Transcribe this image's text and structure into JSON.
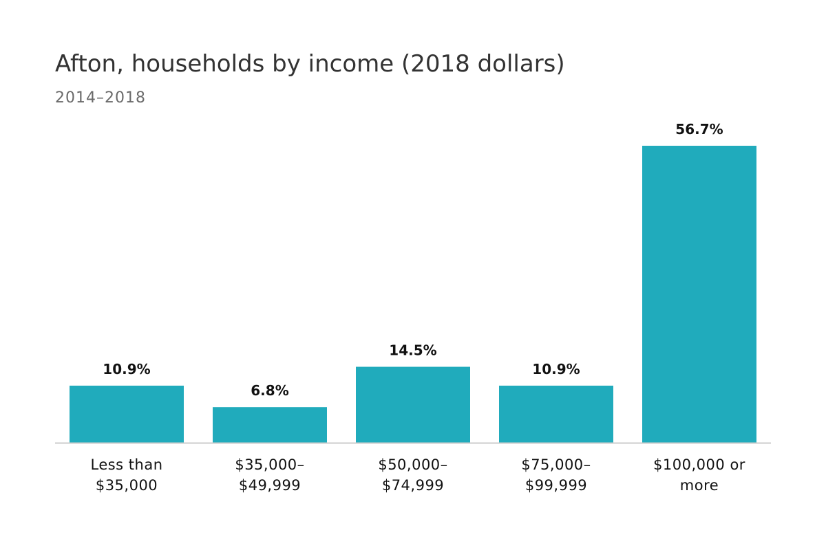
{
  "title": "Afton, households by income (2018 dollars)",
  "subtitle": "2014–2018",
  "chart_data": {
    "type": "bar",
    "title": "Afton, households by income (2018 dollars)",
    "subtitle": "2014–2018",
    "categories": [
      [
        "Less than",
        "$35,000"
      ],
      [
        "$35,000–",
        "$49,999"
      ],
      [
        "$50,000–",
        "$74,999"
      ],
      [
        "$75,000–",
        "$99,999"
      ],
      [
        "$100,000 or",
        "more"
      ]
    ],
    "values": [
      10.9,
      6.8,
      14.5,
      10.9,
      56.7
    ],
    "value_labels": [
      "10.9%",
      "6.8%",
      "14.5%",
      "10.9%",
      "56.7%"
    ],
    "unit": "%",
    "xlabel": "",
    "ylabel": "",
    "ylim": [
      0,
      56.7
    ],
    "grid": false,
    "legend": "none",
    "colors": {
      "bar": "#20abbc",
      "baseline": "#cccccc"
    }
  }
}
